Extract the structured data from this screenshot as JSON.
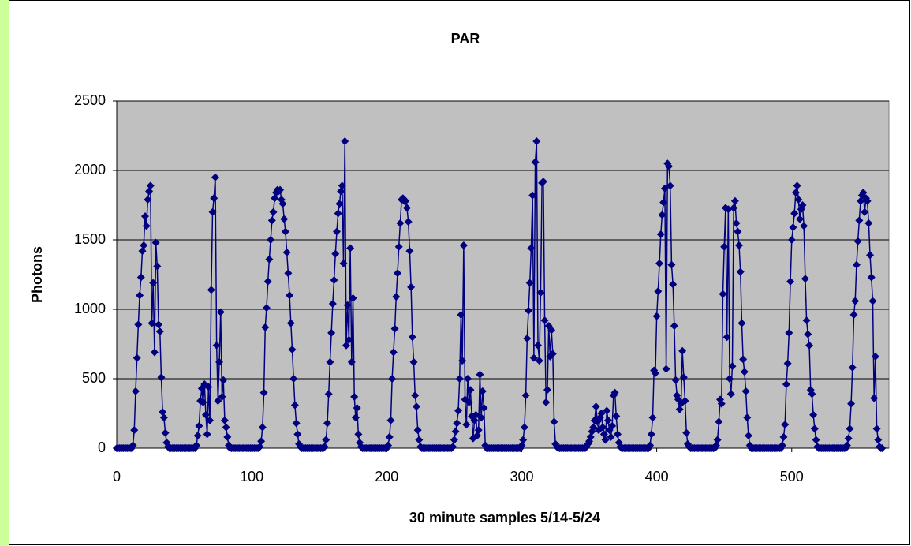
{
  "chart_data": {
    "type": "line",
    "title": "PAR",
    "x_label": "30 minute samples 5/14-5/24",
    "y_label": "Photons",
    "series": [
      {
        "name": "PAR",
        "color": "#000080",
        "values": [
          0,
          0,
          0,
          0,
          0,
          0,
          0,
          0,
          0,
          0,
          0,
          0,
          20,
          130,
          410,
          650,
          890,
          1100,
          1230,
          1420,
          1460,
          1670,
          1600,
          1790,
          1850,
          1890,
          900,
          1190,
          690,
          1480,
          1310,
          890,
          840,
          510,
          260,
          220,
          110,
          40,
          10,
          0,
          0,
          0,
          0,
          0,
          0,
          0,
          0,
          0,
          0,
          0,
          0,
          0,
          0,
          0,
          0,
          0,
          0,
          0,
          0,
          20,
          90,
          160,
          340,
          430,
          330,
          460,
          240,
          100,
          440,
          200,
          1140,
          1700,
          1800,
          1950,
          740,
          340,
          620,
          980,
          370,
          490,
          200,
          150,
          80,
          20,
          0,
          0,
          0,
          0,
          0,
          0,
          0,
          0,
          0,
          0,
          0,
          0,
          0,
          0,
          0,
          0,
          0,
          0,
          0,
          0,
          0,
          0,
          10,
          50,
          150,
          400,
          870,
          1010,
          1200,
          1360,
          1500,
          1640,
          1700,
          1800,
          1840,
          1860,
          1850,
          1860,
          1790,
          1760,
          1650,
          1560,
          1410,
          1260,
          1100,
          900,
          710,
          500,
          310,
          180,
          100,
          30,
          10,
          0,
          0,
          0,
          0,
          0,
          0,
          0,
          0,
          0,
          0,
          0,
          0,
          0,
          0,
          0,
          0,
          0,
          10,
          60,
          180,
          390,
          620,
          830,
          1040,
          1210,
          1400,
          1560,
          1690,
          1760,
          1850,
          1890,
          1330,
          2210,
          740,
          1030,
          780,
          1440,
          620,
          1080,
          370,
          220,
          290,
          100,
          40,
          10,
          0,
          0,
          0,
          0,
          0,
          0,
          0,
          0,
          0,
          0,
          0,
          0,
          0,
          0,
          0,
          0,
          0,
          0,
          0,
          20,
          80,
          200,
          500,
          690,
          860,
          1090,
          1260,
          1450,
          1620,
          1790,
          1800,
          1780,
          1780,
          1730,
          1630,
          1420,
          1160,
          800,
          620,
          380,
          300,
          130,
          60,
          10,
          0,
          0,
          0,
          0,
          0,
          0,
          0,
          0,
          0,
          0,
          0,
          0,
          0,
          0,
          0,
          0,
          0,
          0,
          0,
          0,
          0,
          0,
          0,
          10,
          60,
          120,
          180,
          270,
          500,
          960,
          630,
          1460,
          350,
          170,
          500,
          330,
          420,
          230,
          70,
          200,
          240,
          90,
          130,
          530,
          220,
          410,
          290,
          20,
          0,
          0,
          0,
          0,
          0,
          0,
          0,
          0,
          0,
          0,
          0,
          0,
          0,
          0,
          0,
          0,
          0,
          0,
          0,
          0,
          0,
          0,
          0,
          0,
          0,
          0,
          20,
          60,
          150,
          380,
          790,
          990,
          1190,
          1440,
          1820,
          650,
          2060,
          2210,
          740,
          630,
          1120,
          1910,
          1920,
          920,
          330,
          420,
          880,
          660,
          850,
          680,
          190,
          30,
          10,
          0,
          0,
          0,
          0,
          0,
          0,
          0,
          0,
          0,
          0,
          0,
          0,
          0,
          0,
          0,
          0,
          0,
          0,
          0,
          0,
          0,
          10,
          30,
          50,
          80,
          120,
          150,
          200,
          300,
          190,
          130,
          220,
          250,
          150,
          100,
          60,
          270,
          200,
          130,
          80,
          160,
          380,
          400,
          230,
          100,
          40,
          10,
          0,
          0,
          0,
          0,
          0,
          0,
          0,
          0,
          0,
          0,
          0,
          0,
          0,
          0,
          0,
          0,
          0,
          0,
          0,
          0,
          0,
          20,
          100,
          220,
          560,
          540,
          950,
          1130,
          1330,
          1540,
          1680,
          1770,
          1870,
          570,
          2050,
          2030,
          1890,
          1320,
          1180,
          880,
          490,
          380,
          350,
          280,
          320,
          700,
          510,
          340,
          110,
          30,
          10,
          0,
          0,
          0,
          0,
          0,
          0,
          0,
          0,
          0,
          0,
          0,
          0,
          0,
          0,
          0,
          0,
          0,
          0,
          0,
          20,
          60,
          190,
          350,
          320,
          1110,
          1450,
          1730,
          800,
          1720,
          500,
          390,
          590,
          1730,
          1780,
          1620,
          1560,
          1460,
          1270,
          900,
          640,
          550,
          410,
          220,
          90,
          20,
          0,
          0,
          0,
          0,
          0,
          0,
          0,
          0,
          0,
          0,
          0,
          0,
          0,
          0,
          0,
          0,
          0,
          0,
          0,
          0,
          0,
          0,
          0,
          20,
          80,
          170,
          460,
          610,
          830,
          1200,
          1500,
          1590,
          1690,
          1840,
          1890,
          1790,
          1650,
          1720,
          1750,
          1600,
          1220,
          920,
          820,
          740,
          420,
          390,
          240,
          140,
          60,
          10,
          0,
          0,
          0,
          0,
          0,
          0,
          0,
          0,
          0,
          0,
          0,
          0,
          0,
          0,
          0,
          0,
          0,
          0,
          0,
          0,
          0,
          20,
          70,
          140,
          320,
          580,
          960,
          1060,
          1320,
          1490,
          1640,
          1780,
          1820,
          1840,
          1700,
          1800,
          1780,
          1620,
          1390,
          1230,
          1060,
          360,
          660,
          140,
          60,
          10,
          0,
          0
        ]
      }
    ],
    "xlim": [
      0,
      572
    ],
    "xticks": [
      0,
      100,
      200,
      300,
      400,
      500
    ],
    "ylim": [
      0,
      2500
    ],
    "yticks": [
      0,
      500,
      1000,
      1500,
      2000,
      2500
    ],
    "grid": true,
    "plot_background": "#c0c0c0"
  }
}
